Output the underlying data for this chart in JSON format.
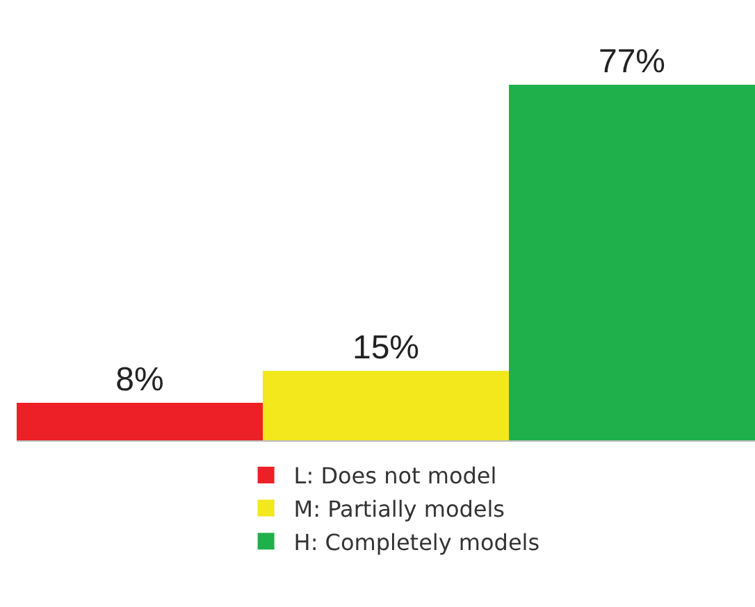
{
  "chart_data": {
    "type": "bar",
    "categories": [
      null,
      null,
      null
    ],
    "stacked": true,
    "series": [
      {
        "name": "L: Does not model",
        "color": "#ee2027",
        "values": [
          8,
          0,
          0
        ],
        "value_labels": [
          "8%",
          null,
          null
        ]
      },
      {
        "name": "M: Partially models",
        "color": "#f2e81c",
        "values": [
          0,
          15,
          0
        ],
        "value_labels": [
          null,
          "15%",
          null
        ]
      },
      {
        "name": "H: Completely models",
        "color": "#1fb04b",
        "values": [
          0,
          0,
          77
        ],
        "value_labels": [
          null,
          null,
          "77%"
        ]
      }
    ],
    "tick_labels": false,
    "legend": "bottom"
  }
}
